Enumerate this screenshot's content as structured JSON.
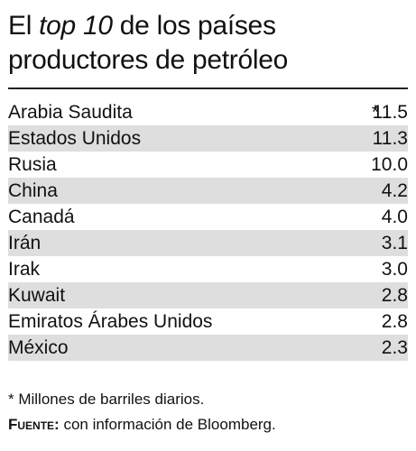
{
  "header": {
    "title_part1": "El ",
    "title_italic": "top 10",
    "title_part2": " de los países productores de petróleo"
  },
  "chart_data": {
    "type": "table",
    "categories": [
      "Arabia Saudita",
      "Estados Unidos",
      "Rusia",
      "China",
      "Canadá",
      "Irán",
      "Irak",
      "Kuwait",
      "Emiratos Árabes Unidos",
      "México"
    ],
    "values": [
      "11.5",
      "11.3",
      "10.0",
      "4.2",
      "4.0",
      "3.1",
      "3.0",
      "2.8",
      "2.8",
      "2.3"
    ],
    "marks": [
      "*",
      "",
      "",
      "",
      "",
      "",
      "",
      "",
      "",
      ""
    ]
  },
  "footer": {
    "note": "* Millones de barriles diarios.",
    "source_label": "Fuente:",
    "source_text": " con información de Bloomberg."
  },
  "colors": {
    "stripe": "#dedede",
    "text": "#111111",
    "rule": "#222222"
  }
}
